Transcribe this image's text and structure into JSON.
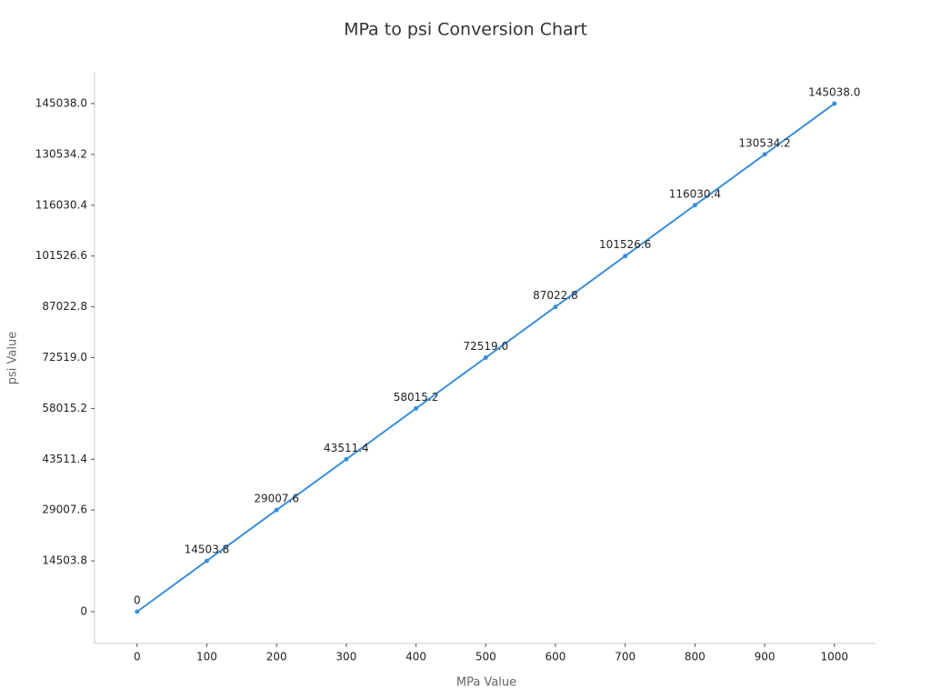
{
  "chart_data": {
    "type": "line",
    "title": "MPa to psi Conversion Chart",
    "x_label": "MPa Value",
    "y_label": "psi Value",
    "x": [
      0,
      100,
      200,
      300,
      400,
      500,
      600,
      700,
      800,
      900,
      1000
    ],
    "series": [
      {
        "name": "psi",
        "color": "#3a8fd9",
        "values": [
          0,
          14503.8,
          29007.6,
          43511.4,
          58015.2,
          72519,
          87022.8,
          101526.6,
          116030.4,
          130534.2,
          145038
        ],
        "value_labels": [
          "0",
          "14503.8",
          "29007.6",
          "43511.4",
          "58015.2",
          "72519.0",
          "87022.8",
          "101526.6",
          "116030.4",
          "130534.2",
          "145038.0"
        ]
      }
    ],
    "xlim": [
      -61,
      1059
    ],
    "xticks": [
      0,
      100,
      200,
      300,
      400,
      500,
      600,
      700,
      800,
      900,
      1000
    ],
    "ylim": [
      -9080,
      153860
    ],
    "yticks": [
      0,
      14503.8,
      29007.6,
      43511.4,
      58015.2,
      {
        "value": 72519,
        "label": "72519.0"
      },
      87022.8,
      101526.6,
      116030.4,
      130534.2,
      {
        "value": 145038,
        "label": "145038.0"
      }
    ],
    "grid": false
  }
}
